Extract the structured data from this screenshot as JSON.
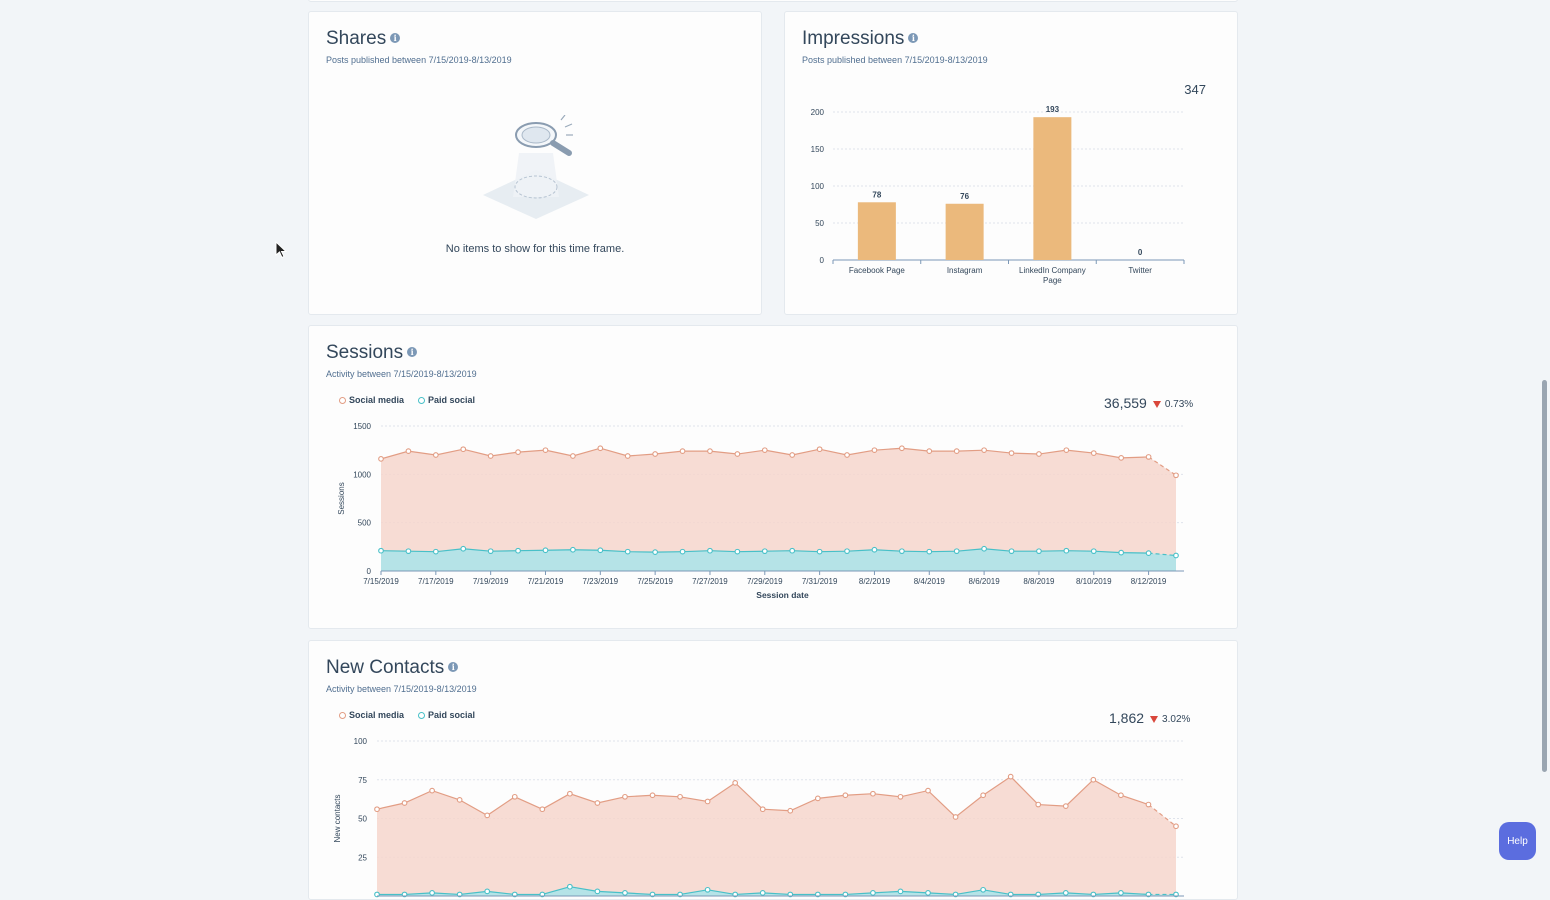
{
  "shares": {
    "title": "Shares",
    "subtitle": "Posts published between 7/15/2019-8/13/2019",
    "empty_message": "No items to show for this time frame."
  },
  "impressions": {
    "title": "Impressions",
    "subtitle": "Posts published between 7/15/2019-8/13/2019",
    "total": "347",
    "chart_data": {
      "type": "bar",
      "title": "Impressions",
      "categories": [
        "Facebook Page",
        "Instagram",
        "LinkedIn Company Page",
        "Twitter"
      ],
      "category_lines": [
        [
          "Facebook Page"
        ],
        [
          "Instagram"
        ],
        [
          "LinkedIn Company",
          "Page"
        ],
        [
          "Twitter"
        ]
      ],
      "values": [
        78,
        76,
        193,
        0
      ],
      "ylim": [
        0,
        200
      ],
      "yticks": [
        0,
        50,
        100,
        150,
        200
      ],
      "color": "#ebb97c"
    }
  },
  "sessions": {
    "title": "Sessions",
    "subtitle": "Activity between 7/15/2019-8/13/2019",
    "total": "36,559",
    "change": "0.73%",
    "legend": {
      "social": "Social media",
      "paid": "Paid social"
    },
    "chart_data": {
      "type": "area",
      "xlabel": "Session date",
      "ylabel": "Sessions",
      "ylim": [
        0,
        1500
      ],
      "yticks": [
        0,
        500,
        1000,
        1500
      ],
      "x_tick_labels": [
        "7/15/2019",
        "7/17/2019",
        "7/19/2019",
        "7/21/2019",
        "7/23/2019",
        "7/25/2019",
        "7/27/2019",
        "7/29/2019",
        "7/31/2019",
        "8/2/2019",
        "8/4/2019",
        "8/6/2019",
        "8/8/2019",
        "8/10/2019",
        "8/12/2019"
      ],
      "series": [
        {
          "name": "Social media",
          "color": "#e29d84",
          "fill": "#f6d6cc",
          "values": [
            1160,
            1240,
            1200,
            1260,
            1190,
            1230,
            1250,
            1190,
            1270,
            1190,
            1210,
            1240,
            1240,
            1210,
            1250,
            1200,
            1260,
            1200,
            1250,
            1270,
            1240,
            1240,
            1250,
            1220,
            1210,
            1250,
            1220,
            1170,
            1180,
            990
          ]
        },
        {
          "name": "Paid social",
          "color": "#48c0c8",
          "fill": "#a9e4ea",
          "values": [
            210,
            205,
            200,
            230,
            205,
            210,
            215,
            220,
            215,
            200,
            195,
            200,
            210,
            200,
            205,
            210,
            200,
            205,
            220,
            205,
            200,
            205,
            230,
            205,
            205,
            210,
            205,
            190,
            185,
            160
          ]
        }
      ]
    }
  },
  "contacts": {
    "title": "New Contacts",
    "subtitle": "Activity between 7/15/2019-8/13/2019",
    "total": "1,862",
    "change": "3.02%",
    "legend": {
      "social": "Social media",
      "paid": "Paid social"
    },
    "chart_data": {
      "type": "area",
      "ylabel": "New contacts",
      "ylim": [
        0,
        100
      ],
      "yticks": [
        25,
        50,
        75,
        100
      ],
      "series": [
        {
          "name": "Social media",
          "color": "#e29d84",
          "fill": "#f6d6cc",
          "values": [
            56,
            60,
            68,
            62,
            52,
            64,
            56,
            66,
            60,
            64,
            65,
            64,
            61,
            73,
            56,
            55,
            63,
            65,
            66,
            64,
            68,
            51,
            65,
            77,
            59,
            58,
            75,
            65,
            59,
            45
          ]
        },
        {
          "name": "Paid social",
          "color": "#48c0c8",
          "fill": "#a9e4ea",
          "values": [
            1,
            1,
            2,
            1,
            3,
            1,
            1,
            6,
            3,
            2,
            1,
            1,
            4,
            1,
            2,
            1,
            1,
            1,
            2,
            3,
            2,
            1,
            4,
            1,
            1,
            2,
            1,
            2,
            1,
            1
          ]
        }
      ]
    }
  },
  "help": {
    "label": "Help"
  }
}
